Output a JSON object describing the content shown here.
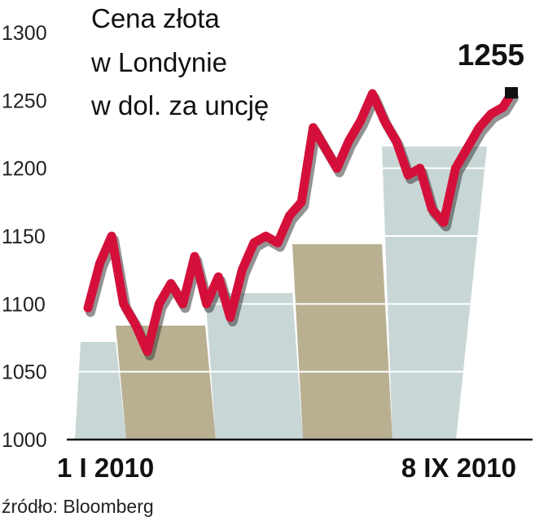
{
  "chart_data": {
    "type": "line",
    "title_lines": [
      "Cena złota",
      "w Londynie",
      "w dol. za uncję"
    ],
    "xlabel": "",
    "ylabel": "",
    "ylim": [
      1000,
      1300
    ],
    "yticks": [
      "1000",
      "1050",
      "1100",
      "1150",
      "1200",
      "1250",
      "1300"
    ],
    "xticks": [
      "1 I 2010",
      "8 IX 2010"
    ],
    "x_range": [
      "2010-01-01",
      "2010-09-08"
    ],
    "end_label": "1255",
    "source": "źródło: Bloomberg",
    "grid": true,
    "series": [
      {
        "x": [
          "2010-01-01",
          "2010-01-08",
          "2010-01-15",
          "2010-01-22",
          "2010-01-29",
          "2010-02-05",
          "2010-02-12",
          "2010-02-19",
          "2010-02-26",
          "2010-03-05",
          "2010-03-12",
          "2010-03-19",
          "2010-03-26",
          "2010-04-02",
          "2010-04-09",
          "2010-04-16",
          "2010-04-23",
          "2010-04-30",
          "2010-05-07",
          "2010-05-14",
          "2010-05-21",
          "2010-05-28",
          "2010-06-04",
          "2010-06-11",
          "2010-06-18",
          "2010-06-25",
          "2010-07-02",
          "2010-07-09",
          "2010-07-16",
          "2010-07-23",
          "2010-07-30",
          "2010-08-06",
          "2010-08-13",
          "2010-08-20",
          "2010-08-27",
          "2010-09-03",
          "2010-09-08"
        ],
        "values": [
          1097,
          1130,
          1150,
          1100,
          1085,
          1065,
          1100,
          1115,
          1100,
          1135,
          1100,
          1120,
          1090,
          1125,
          1145,
          1150,
          1145,
          1165,
          1175,
          1230,
          1215,
          1200,
          1220,
          1235,
          1255,
          1235,
          1220,
          1195,
          1200,
          1170,
          1160,
          1200,
          1215,
          1230,
          1240,
          1245,
          1255
        ]
      }
    ],
    "colors": {
      "line": "#d4103a",
      "line_shadow": "#3a3a3a",
      "end_marker": "#111111",
      "band_dark": "#b8b090",
      "band_light": "#c8d6d6",
      "grid": "#ffffff",
      "axis": "#111111"
    }
  }
}
